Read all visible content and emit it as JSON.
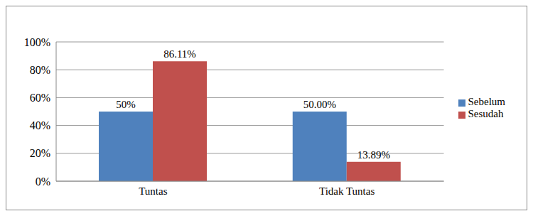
{
  "chart_data": {
    "type": "bar",
    "categories": [
      "Tuntas",
      "Tidak Tuntas"
    ],
    "series": [
      {
        "name": "Sebelum",
        "color": "#4f81bd",
        "values": [
          50,
          50
        ],
        "value_labels": [
          "50%",
          "50.00%"
        ]
      },
      {
        "name": "Sesudah",
        "color": "#c0504d",
        "values": [
          86.11,
          13.89
        ],
        "value_labels": [
          "86.11%",
          "13.89%"
        ]
      }
    ],
    "ylim": [
      0,
      100
    ],
    "yticks": [
      {
        "value": 0,
        "label": "0%"
      },
      {
        "value": 20,
        "label": "20%"
      },
      {
        "value": 40,
        "label": "40%"
      },
      {
        "value": 60,
        "label": "60%"
      },
      {
        "value": 80,
        "label": "80%"
      },
      {
        "value": 100,
        "label": "100%"
      }
    ],
    "grid": true,
    "legend": "right",
    "data_labels": true
  }
}
